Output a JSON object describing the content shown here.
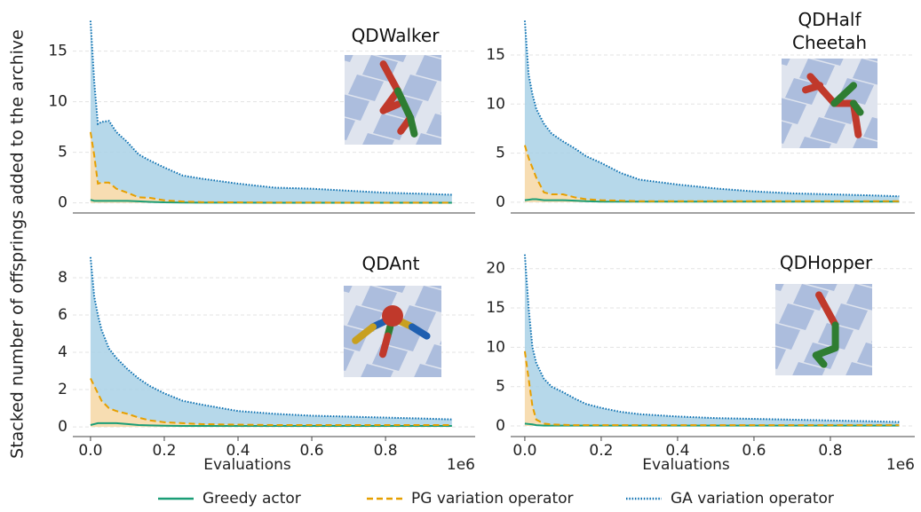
{
  "y_label": "Stacked number of offsprings added to the archive",
  "legend": [
    {
      "name": "Greedy actor",
      "color": "#1b9e77",
      "fill": null,
      "dash": "solid"
    },
    {
      "name": "PG variation operator",
      "color": "#e69f00",
      "fill": "#f6d7a4",
      "dash": "dashed"
    },
    {
      "name": "GA variation operator",
      "color": "#0a6fb0",
      "fill": "#a9d1e6",
      "dash": "dotted"
    }
  ],
  "chart_data": [
    {
      "type": "stacked_area",
      "title": "QDWalker",
      "grid": true,
      "x": [
        0,
        0.01,
        0.02,
        0.03,
        0.05,
        0.07,
        0.1,
        0.13,
        0.16,
        0.2,
        0.25,
        0.3,
        0.4,
        0.5,
        0.6,
        0.7,
        0.8,
        0.9,
        0.98
      ],
      "xlim": [
        -0.048,
        1.043
      ],
      "ylim": [
        -1,
        18.3
      ],
      "yticks": [
        0,
        5,
        10,
        15
      ],
      "series": [
        {
          "values": [
            0.3,
            0.2,
            0.2,
            0.2,
            0.2,
            0.2,
            0.2,
            0.15,
            0.1,
            0.05,
            0.03,
            0.02,
            0.02,
            0.01,
            0.01,
            0.01,
            0.01,
            0.01,
            0.01
          ]
        },
        {
          "values": [
            6.7,
            4.5,
            1.7,
            1.8,
            1.8,
            1.2,
            0.8,
            0.4,
            0.4,
            0.2,
            0.1,
            0.05,
            0.03,
            0.02,
            0.02,
            0.01,
            0.01,
            0.01,
            0.01
          ]
        },
        {
          "values": [
            11,
            7.3,
            5.9,
            6.0,
            6.1,
            5.6,
            5.0,
            4.25,
            3.7,
            3.25,
            2.57,
            2.33,
            1.85,
            1.47,
            1.37,
            1.18,
            0.98,
            0.88,
            0.78
          ]
        }
      ]
    },
    {
      "type": "stacked_area",
      "title": "QDHalf Cheetah",
      "grid": true,
      "x": [
        0,
        0.01,
        0.02,
        0.03,
        0.05,
        0.07,
        0.1,
        0.13,
        0.16,
        0.2,
        0.25,
        0.3,
        0.4,
        0.5,
        0.6,
        0.7,
        0.8,
        0.9,
        0.98
      ],
      "xlim": [
        -0.037,
        1.021
      ],
      "ylim": [
        -1.1,
        18.8
      ],
      "yticks": [
        0,
        5,
        10,
        15
      ],
      "series": [
        {
          "values": [
            0.2,
            0.25,
            0.3,
            0.3,
            0.2,
            0.2,
            0.2,
            0.15,
            0.1,
            0.05,
            0.05,
            0.05,
            0.05,
            0.05,
            0.05,
            0.05,
            0.05,
            0.05,
            0.05
          ]
        },
        {
          "values": [
            5.6,
            4.25,
            3.2,
            2.2,
            0.8,
            0.6,
            0.6,
            0.35,
            0.2,
            0.15,
            0.1,
            0.05,
            0.05,
            0.05,
            0.05,
            0.05,
            0.05,
            0.05,
            0.05
          ]
        },
        {
          "values": [
            12.7,
            8.5,
            7.5,
            7.0,
            7.0,
            6.2,
            5.4,
            5.0,
            4.4,
            3.8,
            2.85,
            2.2,
            1.7,
            1.3,
            1.0,
            0.8,
            0.7,
            0.6,
            0.5
          ]
        }
      ]
    },
    {
      "type": "stacked_area",
      "title": "QDAnt",
      "grid": true,
      "xlabel": "Evaluations",
      "offset_label": "1e6",
      "x": [
        0,
        0.01,
        0.02,
        0.03,
        0.05,
        0.07,
        0.1,
        0.13,
        0.16,
        0.2,
        0.25,
        0.3,
        0.4,
        0.5,
        0.6,
        0.7,
        0.8,
        0.9,
        0.98
      ],
      "xlim": [
        -0.048,
        1.043
      ],
      "ylim": [
        -0.52,
        9.33
      ],
      "yticks": [
        0,
        2,
        4,
        6,
        8
      ],
      "xticks": [
        {
          "value": 0,
          "label": "0.0"
        },
        0.2,
        0.4,
        0.6,
        0.8
      ],
      "series": [
        {
          "values": [
            0.1,
            0.15,
            0.2,
            0.2,
            0.2,
            0.2,
            0.15,
            0.1,
            0.08,
            0.06,
            0.05,
            0.05,
            0.05,
            0.05,
            0.05,
            0.05,
            0.05,
            0.05,
            0.05
          ]
        },
        {
          "values": [
            2.5,
            2.05,
            1.6,
            1.2,
            0.8,
            0.65,
            0.55,
            0.4,
            0.27,
            0.19,
            0.15,
            0.1,
            0.07,
            0.05,
            0.05,
            0.05,
            0.05,
            0.05,
            0.05
          ]
        },
        {
          "values": [
            6.5,
            4.8,
            4.2,
            3.8,
            3.2,
            2.85,
            2.4,
            2.1,
            1.85,
            1.55,
            1.2,
            1.05,
            0.73,
            0.6,
            0.5,
            0.45,
            0.4,
            0.35,
            0.3
          ]
        }
      ]
    },
    {
      "type": "stacked_area",
      "title": "QDHopper",
      "grid": true,
      "xlabel": "Evaluations",
      "offset_label": "1e6",
      "x": [
        0,
        0.01,
        0.02,
        0.03,
        0.05,
        0.07,
        0.1,
        0.13,
        0.16,
        0.2,
        0.25,
        0.3,
        0.4,
        0.5,
        0.6,
        0.7,
        0.8,
        0.9,
        0.98
      ],
      "xlim": [
        -0.037,
        1.021
      ],
      "ylim": [
        -1.35,
        22
      ],
      "yticks": [
        0,
        5,
        10,
        15,
        20
      ],
      "xticks": [
        {
          "value": 0,
          "label": "0.0"
        },
        0.2,
        0.4,
        0.6,
        0.8
      ],
      "series": [
        {
          "values": [
            0.3,
            0.25,
            0.2,
            0.1,
            0.05,
            0.05,
            0.05,
            0.05,
            0.05,
            0.05,
            0.05,
            0.05,
            0.05,
            0.05,
            0.05,
            0.05,
            0.05,
            0.05,
            0.05
          ]
        },
        {
          "values": [
            9.2,
            5.75,
            2.3,
            0.7,
            0.25,
            0.15,
            0.1,
            0.05,
            0.05,
            0.05,
            0.05,
            0.05,
            0.05,
            0.05,
            0.05,
            0.05,
            0.05,
            0.05,
            0.05
          ]
        },
        {
          "values": [
            12.3,
            9,
            7.5,
            7.2,
            5.7,
            4.8,
            4.15,
            3.4,
            2.7,
            2.2,
            1.7,
            1.4,
            1.1,
            0.9,
            0.8,
            0.7,
            0.6,
            0.5,
            0.4
          ]
        }
      ]
    }
  ]
}
